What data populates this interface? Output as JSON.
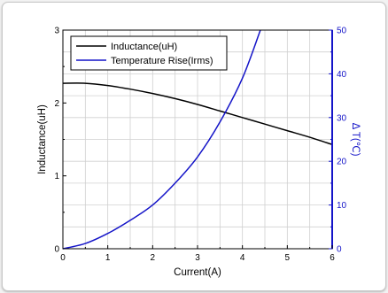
{
  "chart_data": {
    "type": "line",
    "title": "",
    "xlabel": "Current(A)",
    "ylabel_left": "Inductance(uH)",
    "ylabel_right": "Δ T(℃)",
    "xlim": [
      0,
      6
    ],
    "ylim_left": [
      0,
      3
    ],
    "ylim_right": [
      0,
      50
    ],
    "x_ticks": [
      "0",
      "1",
      "2",
      "3",
      "4",
      "5",
      "6"
    ],
    "y_left_ticks": [
      "0",
      "1",
      "2",
      "3"
    ],
    "y_right_ticks": [
      "0",
      "10",
      "20",
      "30",
      "40",
      "50"
    ],
    "grid": true,
    "legend_position": "top-left",
    "series": [
      {
        "name": "Inductance(uH)",
        "axis": "left",
        "color": "#000000",
        "x": [
          0,
          0.5,
          1,
          1.5,
          2,
          2.5,
          3,
          3.5,
          4,
          4.5,
          5,
          5.5,
          6
        ],
        "y": [
          2.27,
          2.27,
          2.24,
          2.19,
          2.13,
          2.06,
          1.98,
          1.89,
          1.8,
          1.71,
          1.62,
          1.53,
          1.43
        ]
      },
      {
        "name": "Temperature Rise(Irms)",
        "axis": "right",
        "color": "#1414c8",
        "x": [
          0,
          0.5,
          1,
          1.5,
          2,
          2.5,
          3,
          3.5,
          4,
          4.4
        ],
        "y": [
          0,
          1.2,
          3.5,
          6.5,
          10,
          15,
          21,
          29,
          39,
          50
        ]
      }
    ]
  }
}
